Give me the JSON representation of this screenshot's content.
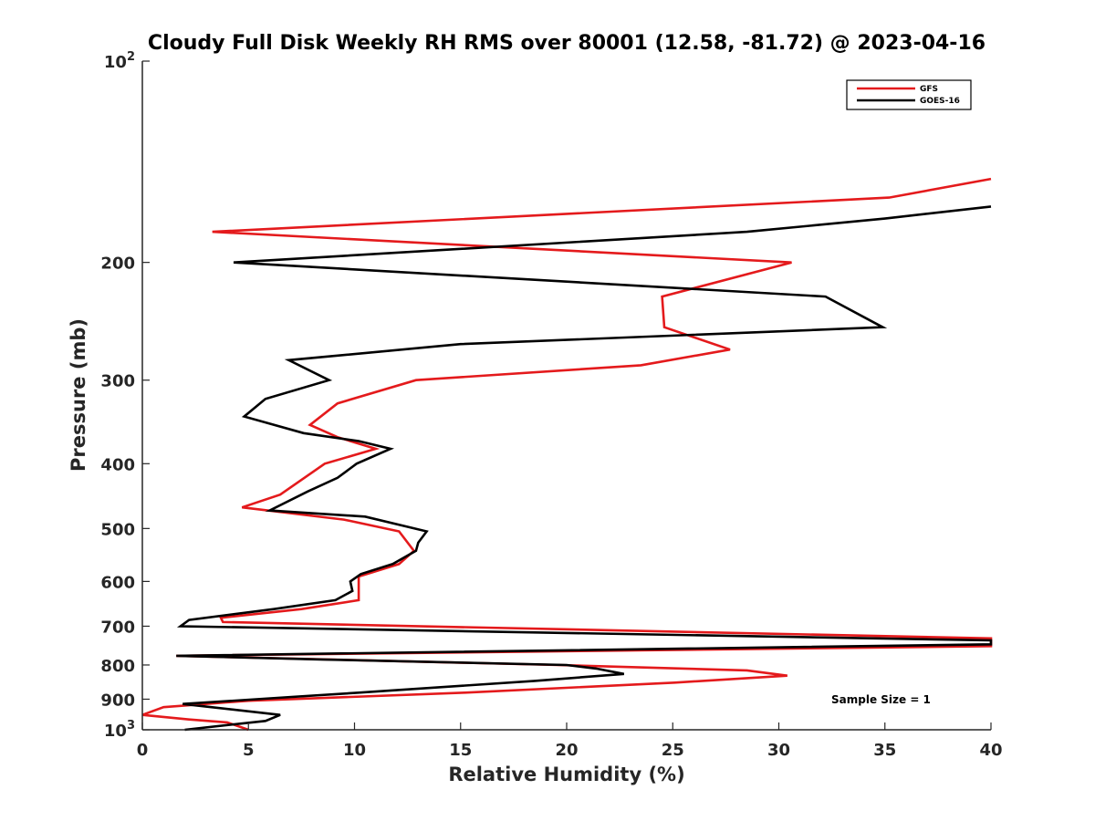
{
  "chart_data": {
    "type": "line",
    "title": "Cloudy Full Disk Weekly RH RMS over 80001 (12.58, -81.72) @ 2023-04-16",
    "xlabel": "Relative Humidity (%)",
    "ylabel": "Pressure (mb)",
    "xlim": [
      0,
      40
    ],
    "ylim": [
      100,
      1000
    ],
    "y_scale": "log",
    "y_reversed": true,
    "grid": false,
    "legend_position": "top-right",
    "x_ticks": [
      "0",
      "5",
      "10",
      "15",
      "20",
      "25",
      "30",
      "35",
      "40"
    ],
    "x_tick_values": [
      0,
      5,
      10,
      15,
      20,
      25,
      30,
      35,
      40
    ],
    "y_ticks": [
      {
        "value": 100,
        "label": "10",
        "sup": "2"
      },
      {
        "value": 200,
        "label": "200",
        "sup": ""
      },
      {
        "value": 300,
        "label": "300",
        "sup": ""
      },
      {
        "value": 400,
        "label": "400",
        "sup": ""
      },
      {
        "value": 500,
        "label": "500",
        "sup": ""
      },
      {
        "value": 600,
        "label": "600",
        "sup": ""
      },
      {
        "value": 700,
        "label": "700",
        "sup": ""
      },
      {
        "value": 800,
        "label": "800",
        "sup": ""
      },
      {
        "value": 900,
        "label": "900",
        "sup": ""
      },
      {
        "value": 1000,
        "label": "10",
        "sup": "3"
      }
    ],
    "series": [
      {
        "name": "GFS",
        "color": "#e41a1c",
        "points": [
          {
            "x": 40.0,
            "y": 150
          },
          {
            "x": 35.2,
            "y": 160
          },
          {
            "x": 3.3,
            "y": 180
          },
          {
            "x": 30.6,
            "y": 200
          },
          {
            "x": 24.5,
            "y": 225
          },
          {
            "x": 24.6,
            "y": 250
          },
          {
            "x": 27.7,
            "y": 270
          },
          {
            "x": 23.5,
            "y": 285
          },
          {
            "x": 12.9,
            "y": 300
          },
          {
            "x": 9.2,
            "y": 325
          },
          {
            "x": 7.9,
            "y": 350
          },
          {
            "x": 9.2,
            "y": 365
          },
          {
            "x": 11.0,
            "y": 380
          },
          {
            "x": 8.6,
            "y": 400
          },
          {
            "x": 6.5,
            "y": 445
          },
          {
            "x": 4.7,
            "y": 465
          },
          {
            "x": 9.5,
            "y": 485
          },
          {
            "x": 12.1,
            "y": 505
          },
          {
            "x": 12.8,
            "y": 540
          },
          {
            "x": 12.1,
            "y": 565
          },
          {
            "x": 10.2,
            "y": 590
          },
          {
            "x": 10.2,
            "y": 610
          },
          {
            "x": 10.2,
            "y": 640
          },
          {
            "x": 7.5,
            "y": 660
          },
          {
            "x": 3.7,
            "y": 680
          },
          {
            "x": 3.8,
            "y": 690
          },
          {
            "x": 40.0,
            "y": 730
          },
          {
            "x": 40.0,
            "y": 750
          },
          {
            "x": 1.6,
            "y": 775
          },
          {
            "x": 19.6,
            "y": 800
          },
          {
            "x": 28.5,
            "y": 815
          },
          {
            "x": 30.4,
            "y": 830
          },
          {
            "x": 25.1,
            "y": 850
          },
          {
            "x": 15.2,
            "y": 880
          },
          {
            "x": 5.0,
            "y": 905
          },
          {
            "x": 1.0,
            "y": 925
          },
          {
            "x": 0.0,
            "y": 950
          },
          {
            "x": 2.2,
            "y": 965
          },
          {
            "x": 4.0,
            "y": 975
          },
          {
            "x": 5.0,
            "y": 1000
          }
        ]
      },
      {
        "name": "GOES-16",
        "color": "#000000",
        "points": [
          {
            "x": 40.0,
            "y": 165
          },
          {
            "x": 35.0,
            "y": 172
          },
          {
            "x": 28.5,
            "y": 180
          },
          {
            "x": 4.3,
            "y": 200
          },
          {
            "x": 32.2,
            "y": 225
          },
          {
            "x": 34.9,
            "y": 250
          },
          {
            "x": 15.0,
            "y": 265
          },
          {
            "x": 6.9,
            "y": 280
          },
          {
            "x": 8.8,
            "y": 300
          },
          {
            "x": 5.8,
            "y": 320
          },
          {
            "x": 4.8,
            "y": 340
          },
          {
            "x": 7.6,
            "y": 360
          },
          {
            "x": 10.2,
            "y": 370
          },
          {
            "x": 11.7,
            "y": 380
          },
          {
            "x": 10.1,
            "y": 400
          },
          {
            "x": 9.2,
            "y": 420
          },
          {
            "x": 7.8,
            "y": 440
          },
          {
            "x": 6.0,
            "y": 470
          },
          {
            "x": 10.5,
            "y": 480
          },
          {
            "x": 13.4,
            "y": 505
          },
          {
            "x": 13.0,
            "y": 525
          },
          {
            "x": 12.9,
            "y": 540
          },
          {
            "x": 11.8,
            "y": 565
          },
          {
            "x": 10.3,
            "y": 585
          },
          {
            "x": 9.8,
            "y": 600
          },
          {
            "x": 9.9,
            "y": 620
          },
          {
            "x": 9.1,
            "y": 640
          },
          {
            "x": 6.2,
            "y": 660
          },
          {
            "x": 2.2,
            "y": 685
          },
          {
            "x": 1.8,
            "y": 700
          },
          {
            "x": 40.0,
            "y": 735
          },
          {
            "x": 40.0,
            "y": 745
          },
          {
            "x": 1.6,
            "y": 775
          },
          {
            "x": 8.4,
            "y": 785
          },
          {
            "x": 20.0,
            "y": 800
          },
          {
            "x": 21.4,
            "y": 810
          },
          {
            "x": 22.7,
            "y": 825
          },
          {
            "x": 18.5,
            "y": 845
          },
          {
            "x": 10.2,
            "y": 880
          },
          {
            "x": 1.9,
            "y": 915
          },
          {
            "x": 6.5,
            "y": 950
          },
          {
            "x": 5.8,
            "y": 970
          },
          {
            "x": 2.0,
            "y": 1000
          }
        ]
      }
    ],
    "annotation": "Sample Size = 1"
  }
}
